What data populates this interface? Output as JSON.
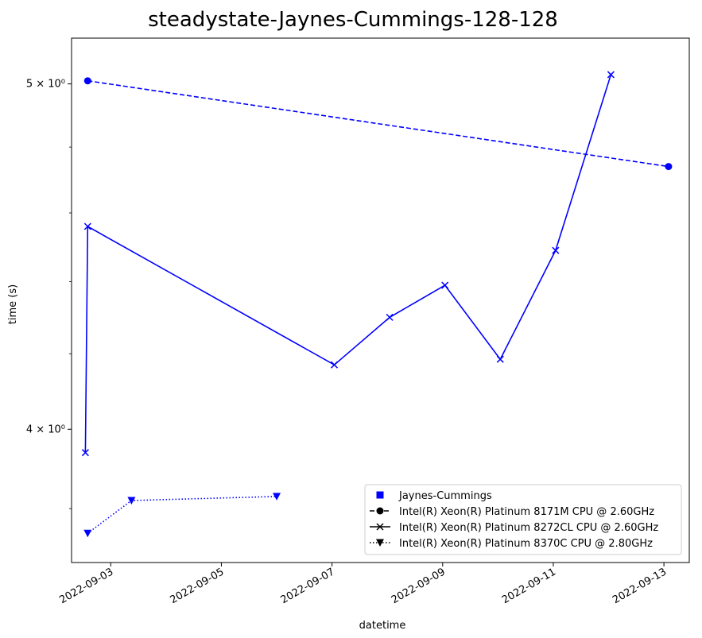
{
  "chart_data": {
    "type": "line",
    "title": "steadystate-Jaynes-Cummings-128-128",
    "xlabel": "datetime",
    "ylabel": "time (s)",
    "yscale": "log",
    "xlim": [
      "2022-09-02T07:00",
      "2022-09-13T11:00"
    ],
    "ylim": [
      3.67,
      5.15
    ],
    "x_ticks": [
      "2022-09-03",
      "2022-09-05",
      "2022-09-07",
      "2022-09-09",
      "2022-09-11",
      "2022-09-13"
    ],
    "y_ticks": [
      {
        "value": 4,
        "label": "4 × 10⁰"
      },
      {
        "value": 5,
        "label": "5 × 10⁰"
      }
    ],
    "grid": false,
    "legend_position": "lower-right",
    "color": "#0000ff",
    "legend": [
      {
        "label": "Jaynes-Cummings",
        "marker": "square",
        "linestyle": "none"
      },
      {
        "label": "Intel(R) Xeon(R) Platinum 8171M CPU @ 2.60GHz",
        "marker": "circle",
        "linestyle": "dashed"
      },
      {
        "label": "Intel(R) Xeon(R) Platinum 8272CL CPU @ 2.60GHz",
        "marker": "x",
        "linestyle": "solid"
      },
      {
        "label": "Intel(R) Xeon(R) Platinum 8370C CPU @ 2.80GHz",
        "marker": "triangle-down",
        "linestyle": "dotted"
      }
    ],
    "series": [
      {
        "name": "Intel(R) Xeon(R) Platinum 8171M CPU @ 2.60GHz",
        "marker": "circle",
        "linestyle": "dashed",
        "points": [
          [
            "2022-09-02T14:00",
            5.01
          ],
          [
            "2022-09-13T02:00",
            4.74
          ]
        ]
      },
      {
        "name": "Intel(R) Xeon(R) Platinum 8272CL CPU @ 2.60GHz",
        "marker": "x",
        "linestyle": "solid",
        "points": [
          [
            "2022-09-02T13:00",
            3.94
          ],
          [
            "2022-09-02T14:00",
            4.56
          ],
          [
            "2022-09-07T01:00",
            4.17
          ],
          [
            "2022-09-08T01:00",
            4.3
          ],
          [
            "2022-09-09T01:00",
            4.39
          ],
          [
            "2022-09-10T01:00",
            4.185
          ],
          [
            "2022-09-11T01:00",
            4.49
          ],
          [
            "2022-09-12T01:00",
            5.03
          ]
        ]
      },
      {
        "name": "Intel(R) Xeon(R) Platinum 8370C CPU @ 2.80GHz",
        "marker": "triangle-down",
        "linestyle": "dotted",
        "points": [
          [
            "2022-09-02T14:00",
            3.74
          ],
          [
            "2022-09-03T09:00",
            3.82
          ],
          [
            "2022-09-06T00:00",
            3.83
          ]
        ]
      }
    ]
  }
}
